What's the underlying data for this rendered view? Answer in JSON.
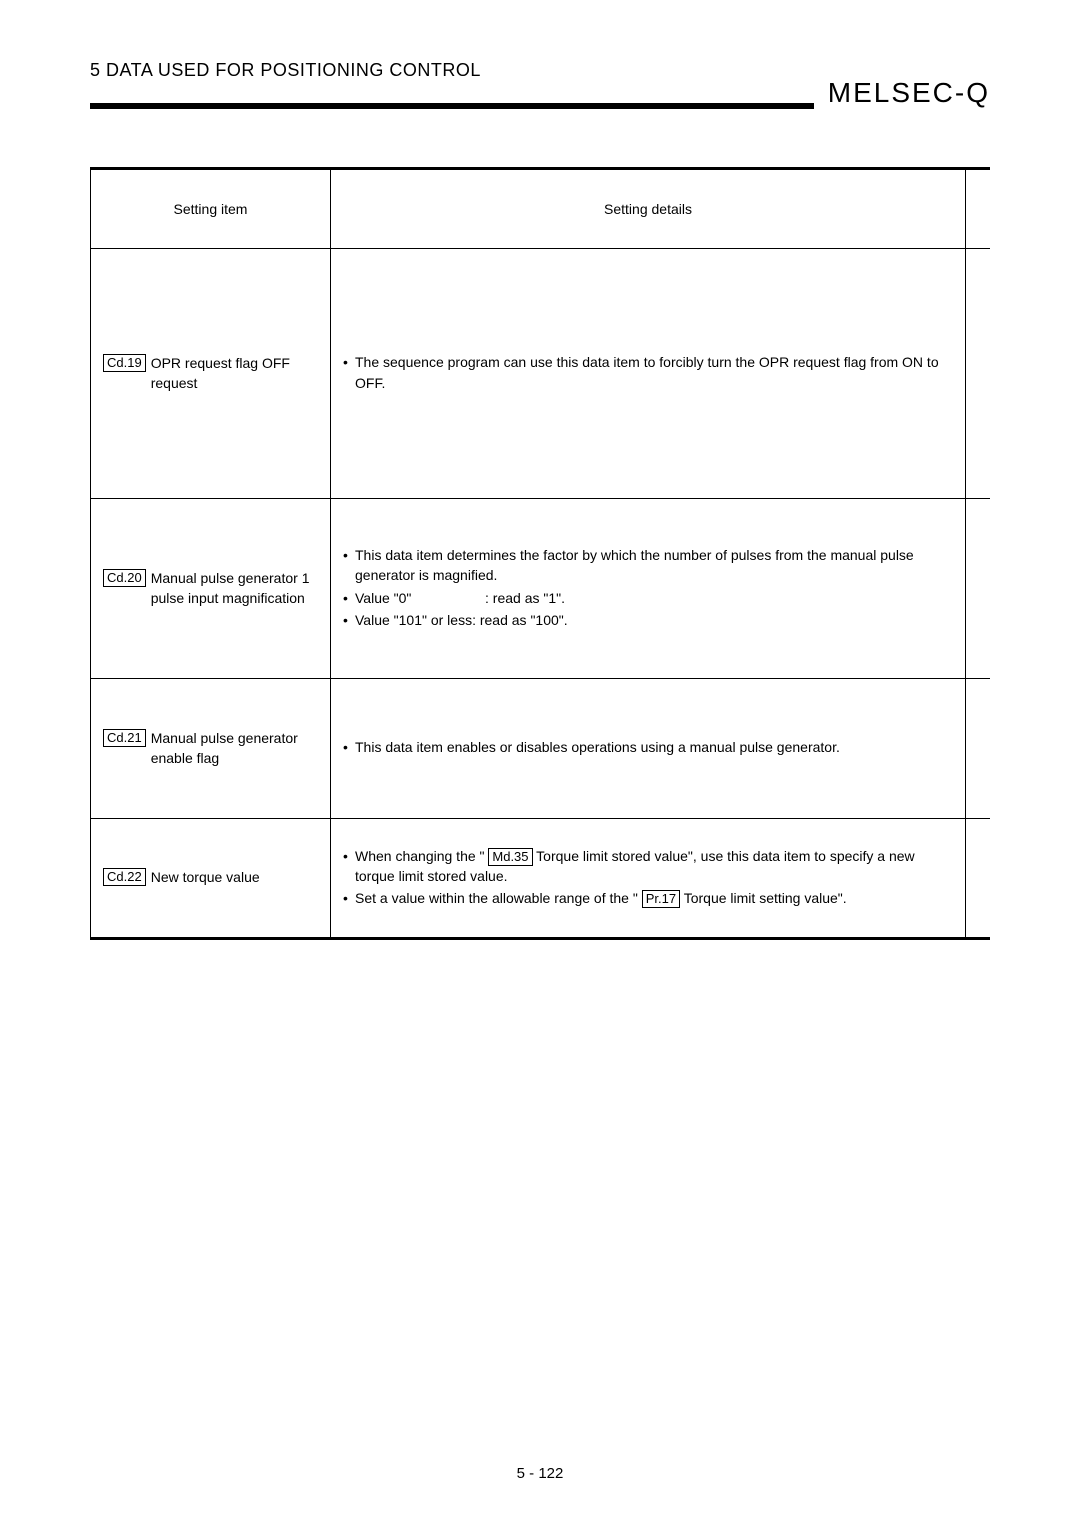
{
  "header": {
    "chapter_title": "5   DATA USED FOR POSITIONING CONTROL",
    "brand": "MELSEC-Q"
  },
  "table": {
    "columns": {
      "setting_item": "Setting item",
      "setting_details": "Setting details"
    },
    "rows": [
      {
        "cd": "Cd.19",
        "item": "OPR request flag OFF request",
        "details": {
          "lines": [
            {
              "type": "bullet",
              "text": "The sequence program can use this data item to forcibly turn the OPR request flag from ON to OFF."
            }
          ]
        }
      },
      {
        "cd": "Cd.20",
        "item": "Manual pulse generator 1 pulse input magnification",
        "details": {
          "lines": [
            {
              "type": "bullet",
              "text": "This data item determines the factor by which the number of pulses from the manual pulse generator is magnified."
            },
            {
              "type": "bullet",
              "kv": true,
              "k": "Value \"0\"",
              "sep": ":",
              "v": "read as \"1\"."
            },
            {
              "type": "bullet",
              "text": "Value \"101\" or less: read as \"100\"."
            }
          ]
        }
      },
      {
        "cd": "Cd.21",
        "item": "Manual pulse generator enable flag",
        "details": {
          "lines": [
            {
              "type": "bullet",
              "text": "This data item enables or disables operations using a manual pulse generator."
            }
          ]
        }
      },
      {
        "cd": "Cd.22",
        "item": "New torque value",
        "details": {
          "lines": [
            {
              "type": "bullet",
              "html": true,
              "segments": [
                {
                  "t": "When changing the \" "
                },
                {
                  "box": "Md.35"
                },
                {
                  "t": " Torque limit stored value\", use this data item to specify a new torque limit stored value."
                }
              ]
            },
            {
              "type": "bullet",
              "html": true,
              "segments": [
                {
                  "t": "Set a value within the allowable range of the \" "
                },
                {
                  "box": "Pr.17"
                },
                {
                  "t": " Torque limit setting value\"."
                }
              ]
            }
          ]
        }
      }
    ]
  },
  "page_number": "5 - 122"
}
